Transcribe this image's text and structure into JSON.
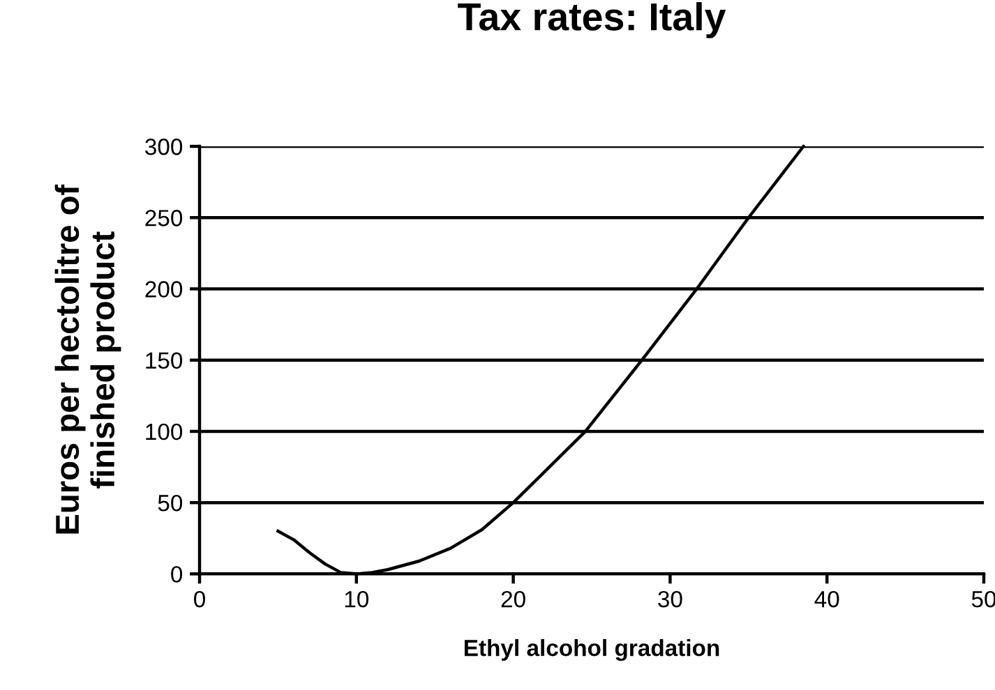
{
  "chart_data": {
    "type": "line",
    "title": "Tax rates: Italy",
    "xlabel": "Ethyl alcohol gradation",
    "ylabel": "Euros per hectolitre of\nfinished product",
    "series": [
      {
        "color": "#000000",
        "x": [
          5,
          6,
          7,
          8,
          9,
          10,
          11,
          12,
          14,
          16,
          18,
          20,
          24.6,
          28.2,
          31.7,
          35,
          38.5
        ],
        "values": [
          30,
          24,
          15,
          7,
          1,
          0,
          1,
          3,
          9,
          18,
          31,
          50,
          100,
          150,
          200,
          250,
          300
        ]
      }
    ],
    "xlim": [
      0,
      50
    ],
    "ylim": [
      0,
      300
    ],
    "xticks": [
      0,
      10,
      20,
      30,
      40,
      50
    ],
    "yticks": [
      0,
      50,
      100,
      150,
      200,
      250,
      300
    ],
    "grid": "y",
    "marker": "none",
    "line_style": "solid"
  }
}
